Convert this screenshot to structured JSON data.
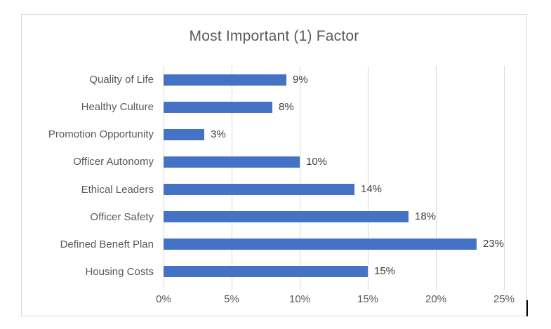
{
  "chart_data": {
    "type": "bar",
    "orientation": "horizontal",
    "title": "Most Important (1) Factor",
    "categories": [
      "Quality of Life",
      "Healthy Culture",
      "Promotion Opportunity",
      "Officer Autonomy",
      "Ethical Leaders",
      "Officer Safety",
      "Defined Beneft Plan",
      "Housing Costs"
    ],
    "values": [
      9,
      8,
      3,
      10,
      14,
      18,
      23,
      15
    ],
    "value_labels": [
      "9%",
      "8%",
      "3%",
      "10%",
      "14%",
      "18%",
      "23%",
      "15%"
    ],
    "x_ticks": [
      "0%",
      "5%",
      "10%",
      "15%",
      "20%",
      "25%"
    ],
    "xlim": [
      0,
      25
    ],
    "xlabel": "",
    "ylabel": "",
    "grid": true,
    "legend": "none",
    "bar_color": "#4472C4",
    "gridline_color": "#D9D9D9",
    "title_color": "#595959",
    "axis_label_color": "#595959",
    "data_label_color": "#404040",
    "frame_border_color": "#D8D8D8"
  }
}
